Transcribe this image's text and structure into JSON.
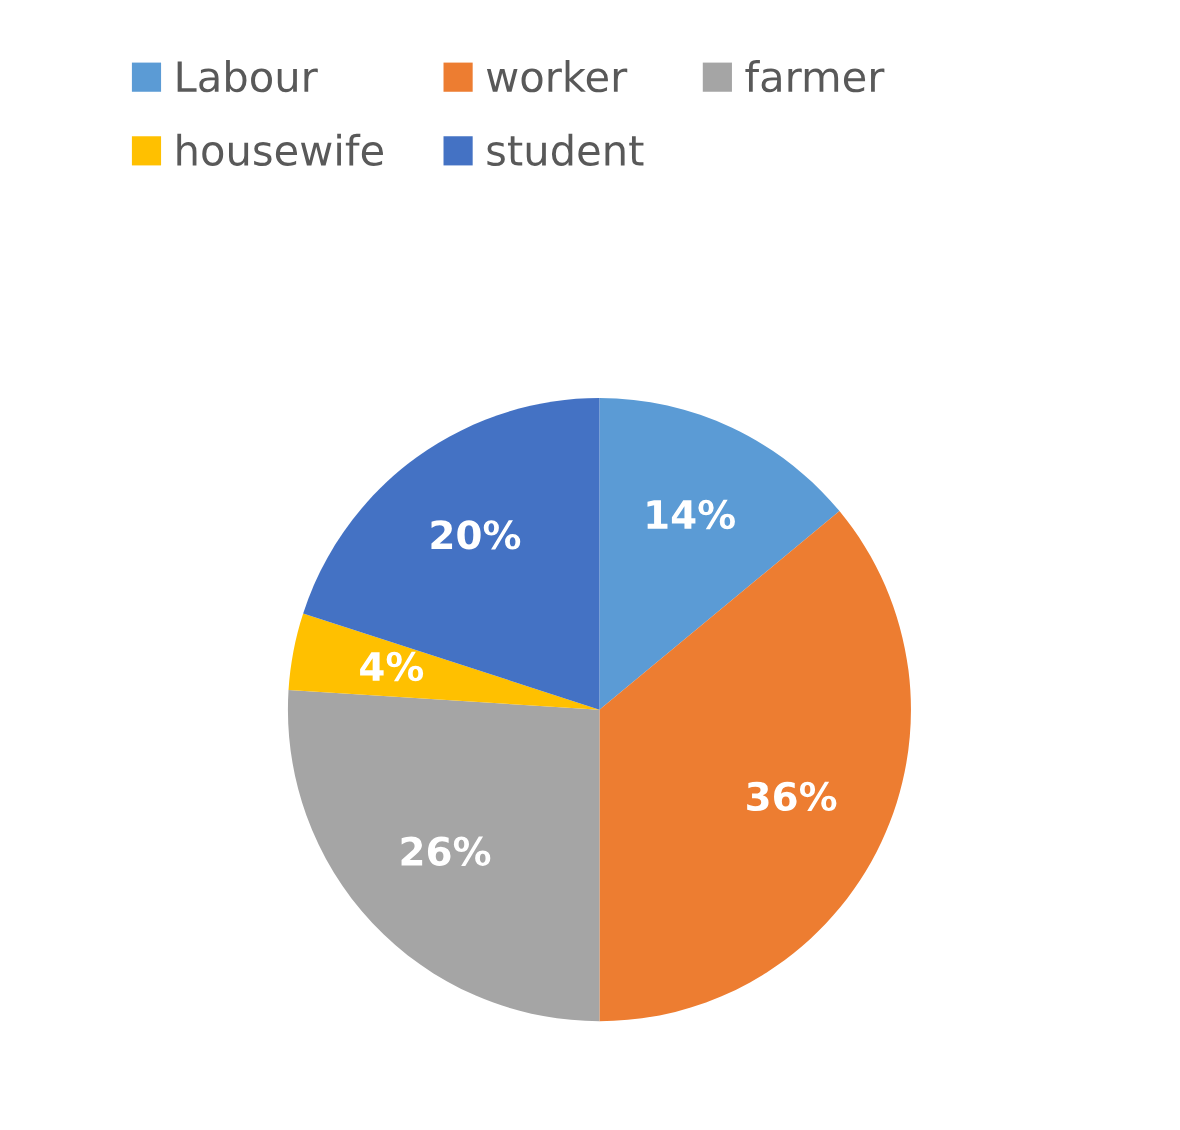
{
  "chart_data": {
    "type": "pie",
    "categories": [
      "Labour",
      "worker",
      "farmer",
      "housewife",
      "student"
    ],
    "values": [
      14,
      36,
      26,
      4,
      20
    ],
    "colors": [
      "#5b9bd5",
      "#ed7d31",
      "#a5a5a5",
      "#ffc000",
      "#4472c4"
    ],
    "value_labels": [
      "14%",
      "36%",
      "26%",
      "4%",
      "20%"
    ],
    "legend": "top"
  }
}
